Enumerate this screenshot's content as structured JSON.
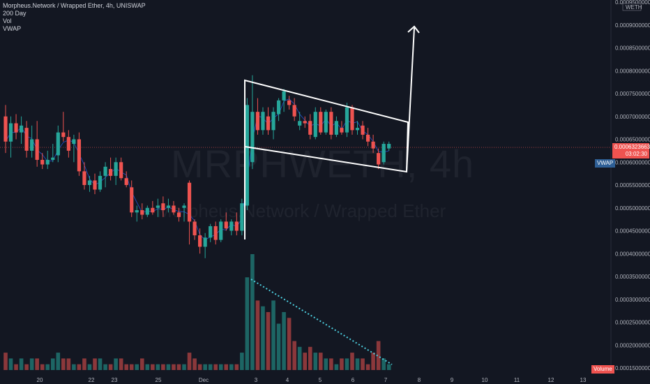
{
  "legend": {
    "title": "Morpheus.Network / Wrapped Ether, 4h, UNISWAP",
    "indicators": [
      "200 Day",
      "Vol",
      "VWAP"
    ]
  },
  "watermark": {
    "symbol": "MRPHWETH, 4h",
    "name": "Morpheus.Network / Wrapped Ether"
  },
  "price_axis": {
    "currency": "WETH",
    "ticks": [
      "0.0009500000",
      "0.0009000000",
      "0.0008500000",
      "0.0008000000",
      "0.0007500000",
      "0.0007000000",
      "0.0006500000",
      "0.0006000000",
      "0.0005500000",
      "0.0005000000",
      "0.0004500000",
      "0.0004000000",
      "0.0003500000",
      "0.0003000000",
      "0.0002500000",
      "0.0002000000",
      "0.0001500000"
    ],
    "current_price": "0.0006323663",
    "countdown": "03:02:30",
    "vwap_label": "VWAP",
    "volume_label": "Volume"
  },
  "time_axis": {
    "labels": [
      "20",
      "22",
      "23",
      "25",
      "Dec",
      "3",
      "4",
      "5",
      "6",
      "7",
      "8",
      "9",
      "10",
      "11",
      "12",
      "13"
    ]
  },
  "colors": {
    "background": "#131722",
    "up": "#26a69a",
    "down": "#ef5350",
    "vwap_line": "#2962ff",
    "price_line": "#ef5350",
    "drawing": "#ffffff",
    "volume_trend": "#4dd0e1"
  },
  "chart_data": {
    "type": "candlestick",
    "title": "Morpheus.Network / Wrapped Ether, 4h, UNISWAP",
    "ylim": [
      0.00015,
      0.00095
    ],
    "annotations": [
      "bull flag channel with upward breakout arrow",
      "declining volume trendline"
    ],
    "candles": [
      {
        "o": 0.0007,
        "h": 0.000725,
        "l": 0.00062,
        "c": 0.000645
      },
      {
        "o": 0.000645,
        "h": 0.0007,
        "l": 0.00061,
        "c": 0.000685
      },
      {
        "o": 0.000685,
        "h": 0.000705,
        "l": 0.00065,
        "c": 0.000665
      },
      {
        "o": 0.000665,
        "h": 0.0007,
        "l": 0.00064,
        "c": 0.00068
      },
      {
        "o": 0.000675,
        "h": 0.00069,
        "l": 0.00061,
        "c": 0.000625
      },
      {
        "o": 0.000625,
        "h": 0.00068,
        "l": 0.00061,
        "c": 0.00065
      },
      {
        "o": 0.00065,
        "h": 0.00069,
        "l": 0.00059,
        "c": 0.000605
      },
      {
        "o": 0.000605,
        "h": 0.00062,
        "l": 0.000585,
        "c": 0.000595
      },
      {
        "o": 0.000595,
        "h": 0.000625,
        "l": 0.000585,
        "c": 0.000605
      },
      {
        "o": 0.000605,
        "h": 0.00064,
        "l": 0.0006,
        "c": 0.00061
      },
      {
        "o": 0.000615,
        "h": 0.00068,
        "l": 0.0006,
        "c": 0.000665
      },
      {
        "o": 0.000665,
        "h": 0.00071,
        "l": 0.000645,
        "c": 0.000655
      },
      {
        "o": 0.000655,
        "h": 0.00067,
        "l": 0.00061,
        "c": 0.000625
      },
      {
        "o": 0.00064,
        "h": 0.00066,
        "l": 0.0006,
        "c": 0.00065
      },
      {
        "o": 0.00065,
        "h": 0.000665,
        "l": 0.00057,
        "c": 0.00058
      },
      {
        "o": 0.00058,
        "h": 0.0006,
        "l": 0.00054,
        "c": 0.00055
      },
      {
        "o": 0.00055,
        "h": 0.00057,
        "l": 0.000535,
        "c": 0.00056
      },
      {
        "o": 0.00056,
        "h": 0.000575,
        "l": 0.00053,
        "c": 0.00054
      },
      {
        "o": 0.00054,
        "h": 0.00058,
        "l": 0.000535,
        "c": 0.00057
      },
      {
        "o": 0.00057,
        "h": 0.0006,
        "l": 0.000545,
        "c": 0.00059
      },
      {
        "o": 0.000585,
        "h": 0.00061,
        "l": 0.00056,
        "c": 0.00057
      },
      {
        "o": 0.00057,
        "h": 0.00061,
        "l": 0.00055,
        "c": 0.0006
      },
      {
        "o": 0.0006,
        "h": 0.00061,
        "l": 0.00056,
        "c": 0.000565
      },
      {
        "o": 0.000565,
        "h": 0.00058,
        "l": 0.000545,
        "c": 0.00055
      },
      {
        "o": 0.000545,
        "h": 0.00056,
        "l": 0.00048,
        "c": 0.00049
      },
      {
        "o": 0.00049,
        "h": 0.000505,
        "l": 0.00047,
        "c": 0.000495
      },
      {
        "o": 0.000495,
        "h": 0.00051,
        "l": 0.000475,
        "c": 0.000485
      },
      {
        "o": 0.000485,
        "h": 0.000505,
        "l": 0.00048,
        "c": 0.0005
      },
      {
        "o": 0.0005,
        "h": 0.000515,
        "l": 0.000485,
        "c": 0.00049
      },
      {
        "o": 0.0005,
        "h": 0.00052,
        "l": 0.00048,
        "c": 0.000505
      },
      {
        "o": 0.00051,
        "h": 0.000525,
        "l": 0.00048,
        "c": 0.000495
      },
      {
        "o": 0.0005,
        "h": 0.00052,
        "l": 0.00049,
        "c": 0.000505
      },
      {
        "o": 0.000505,
        "h": 0.000515,
        "l": 0.000485,
        "c": 0.00049
      },
      {
        "o": 0.00049,
        "h": 0.0005,
        "l": 0.00047,
        "c": 0.00048
      },
      {
        "o": 0.0005,
        "h": 0.00051,
        "l": 0.00047,
        "c": 0.000505
      },
      {
        "o": 0.000555,
        "h": 0.00056,
        "l": 0.00042,
        "c": 0.00047
      },
      {
        "o": 0.00047,
        "h": 0.000475,
        "l": 0.00043,
        "c": 0.00044
      },
      {
        "o": 0.00044,
        "h": 0.000455,
        "l": 0.0004,
        "c": 0.000415
      },
      {
        "o": 0.000415,
        "h": 0.000445,
        "l": 0.00039,
        "c": 0.000435
      },
      {
        "o": 0.000435,
        "h": 0.000465,
        "l": 0.000425,
        "c": 0.00046
      },
      {
        "o": 0.00046,
        "h": 0.00047,
        "l": 0.00042,
        "c": 0.00043
      },
      {
        "o": 0.00043,
        "h": 0.000475,
        "l": 0.000425,
        "c": 0.00047
      },
      {
        "o": 0.00047,
        "h": 0.00049,
        "l": 0.00045,
        "c": 0.000455
      },
      {
        "o": 0.00045,
        "h": 0.000475,
        "l": 0.00044,
        "c": 0.00047
      },
      {
        "o": 0.00047,
        "h": 0.00049,
        "l": 0.00044,
        "c": 0.00045
      },
      {
        "o": 0.00045,
        "h": 0.00052,
        "l": 0.00044,
        "c": 0.00051
      },
      {
        "o": 0.000505,
        "h": 0.00074,
        "l": 0.000495,
        "c": 0.000725
      },
      {
        "o": 0.0006,
        "h": 0.00079,
        "l": 0.000585,
        "c": 0.00071
      },
      {
        "o": 0.00071,
        "h": 0.00074,
        "l": 0.00066,
        "c": 0.00067
      },
      {
        "o": 0.00067,
        "h": 0.00072,
        "l": 0.00066,
        "c": 0.00071
      },
      {
        "o": 0.0007,
        "h": 0.00072,
        "l": 0.00066,
        "c": 0.00067
      },
      {
        "o": 0.00067,
        "h": 0.00072,
        "l": 0.00065,
        "c": 0.00071
      },
      {
        "o": 0.000705,
        "h": 0.00074,
        "l": 0.00069,
        "c": 0.000735
      },
      {
        "o": 0.000735,
        "h": 0.00076,
        "l": 0.00071,
        "c": 0.000755
      },
      {
        "o": 0.000735,
        "h": 0.000745,
        "l": 0.000715,
        "c": 0.000725
      },
      {
        "o": 0.000725,
        "h": 0.00074,
        "l": 0.00069,
        "c": 0.0007
      },
      {
        "o": 0.00068,
        "h": 0.00071,
        "l": 0.00067,
        "c": 0.00069
      },
      {
        "o": 0.00069,
        "h": 0.0007,
        "l": 0.000675,
        "c": 0.000685
      },
      {
        "o": 0.00069,
        "h": 0.000705,
        "l": 0.00065,
        "c": 0.00066
      },
      {
        "o": 0.000655,
        "h": 0.00072,
        "l": 0.00065,
        "c": 0.00071
      },
      {
        "o": 0.00071,
        "h": 0.00072,
        "l": 0.00066,
        "c": 0.000665
      },
      {
        "o": 0.000665,
        "h": 0.000715,
        "l": 0.00066,
        "c": 0.00071
      },
      {
        "o": 0.00071,
        "h": 0.00072,
        "l": 0.00065,
        "c": 0.00066
      },
      {
        "o": 0.00066,
        "h": 0.0007,
        "l": 0.000655,
        "c": 0.00069
      },
      {
        "o": 0.000675,
        "h": 0.00069,
        "l": 0.00066,
        "c": 0.000665
      },
      {
        "o": 0.000665,
        "h": 0.00073,
        "l": 0.000655,
        "c": 0.00072
      },
      {
        "o": 0.00072,
        "h": 0.000725,
        "l": 0.00066,
        "c": 0.00067
      },
      {
        "o": 0.00067,
        "h": 0.00069,
        "l": 0.00066,
        "c": 0.000675
      },
      {
        "o": 0.00068,
        "h": 0.00069,
        "l": 0.00065,
        "c": 0.00066
      },
      {
        "o": 0.00066,
        "h": 0.000675,
        "l": 0.000635,
        "c": 0.000645
      },
      {
        "o": 0.000645,
        "h": 0.00066,
        "l": 0.00062,
        "c": 0.00063
      },
      {
        "o": 0.00062,
        "h": 0.00063,
        "l": 0.000585,
        "c": 0.000595
      },
      {
        "o": 0.0006,
        "h": 0.000645,
        "l": 0.000595,
        "c": 0.00064
      },
      {
        "o": 0.00063,
        "h": 0.000645,
        "l": 0.000625,
        "c": 0.00064
      }
    ],
    "volume": [
      3,
      2,
      1,
      2,
      1,
      2,
      2,
      1,
      1,
      2,
      3,
      2,
      2,
      1,
      1,
      2,
      1,
      2,
      2,
      1,
      1,
      2,
      2,
      1,
      1,
      1,
      2,
      1,
      1,
      1,
      1,
      1,
      1,
      1,
      1,
      3,
      2,
      1,
      1,
      1,
      1,
      1,
      1,
      1,
      1,
      3,
      16,
      20,
      12,
      11,
      10,
      12,
      8,
      10,
      9,
      5,
      4,
      3,
      4,
      3,
      3,
      2,
      2,
      1,
      2,
      2,
      3,
      2,
      2,
      1,
      3,
      5,
      2,
      1
    ]
  }
}
